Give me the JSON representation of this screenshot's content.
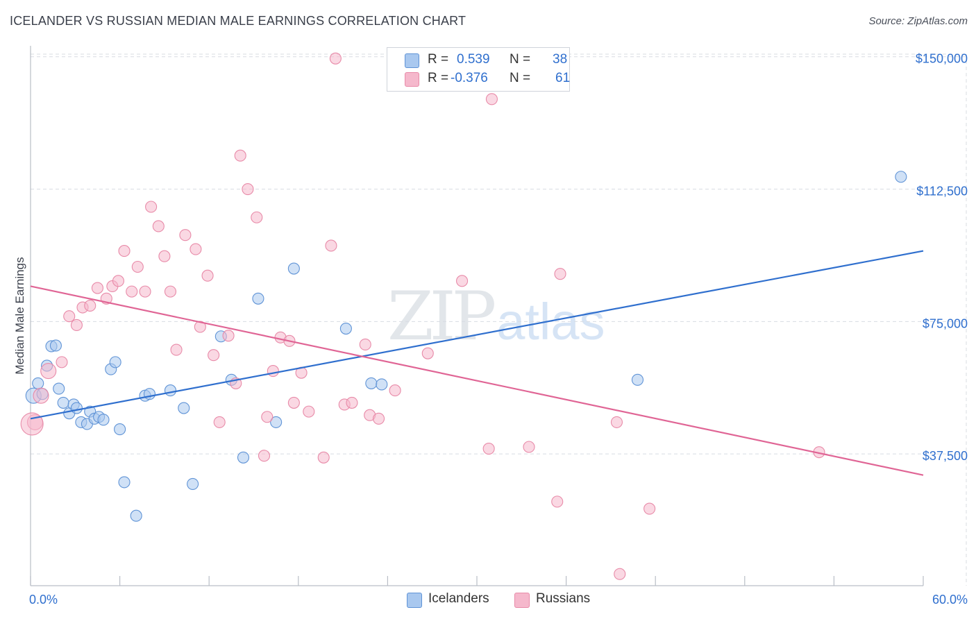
{
  "title": "ICELANDER VS RUSSIAN MEDIAN MALE EARNINGS CORRELATION CHART",
  "source": "Source: ZipAtlas.com",
  "watermark": {
    "zip": "ZIP",
    "atlas": "atlas"
  },
  "colors": {
    "icelanders_fill": "#a9c8ef",
    "icelanders_stroke": "#5f93d6",
    "icelanders_line": "#2f6fce",
    "russians_fill": "#f5b8cc",
    "russians_stroke": "#e88aa8",
    "russians_line": "#e06595",
    "axis_label": "#2f6fce",
    "grid": "#d8dce2"
  },
  "legend": {
    "r_label": "R =",
    "n_label": "N =",
    "icelanders": {
      "r": "0.539",
      "n": "38"
    },
    "russians": {
      "r": "-0.376",
      "n": "61"
    }
  },
  "chart_data": {
    "type": "scatter",
    "title": "ICELANDER VS RUSSIAN MEDIAN MALE EARNINGS CORRELATION CHART",
    "xlabel": "",
    "ylabel": "Median Male Earnings",
    "xlim": [
      0,
      60
    ],
    "ylim": [
      0,
      150000
    ],
    "x_tick_labels": [
      "0.0%",
      "60.0%"
    ],
    "y_ticks": [
      37500,
      75000,
      112500,
      150000
    ],
    "y_tick_labels": [
      "$37,500",
      "$75,000",
      "$112,500",
      "$150,000"
    ],
    "grid": true,
    "series": [
      {
        "name": "Icelanders",
        "points": [
          [
            0.2,
            54000
          ],
          [
            0.5,
            57500
          ],
          [
            0.8,
            54500
          ],
          [
            1.1,
            62500
          ],
          [
            1.4,
            68000
          ],
          [
            1.7,
            68200
          ],
          [
            1.9,
            56000
          ],
          [
            2.2,
            52000
          ],
          [
            2.6,
            49000
          ],
          [
            2.9,
            51500
          ],
          [
            3.1,
            50500
          ],
          [
            3.4,
            46500
          ],
          [
            3.8,
            46000
          ],
          [
            4.0,
            49500
          ],
          [
            4.3,
            47500
          ],
          [
            4.6,
            48000
          ],
          [
            4.9,
            47200
          ],
          [
            5.4,
            61500
          ],
          [
            5.7,
            63500
          ],
          [
            6.0,
            44500
          ],
          [
            6.3,
            29500
          ],
          [
            7.1,
            20000
          ],
          [
            7.7,
            54000
          ],
          [
            8.0,
            54500
          ],
          [
            9.4,
            55500
          ],
          [
            10.3,
            50500
          ],
          [
            10.9,
            29000
          ],
          [
            12.8,
            70800
          ],
          [
            13.5,
            58500
          ],
          [
            14.3,
            36500
          ],
          [
            15.3,
            81500
          ],
          [
            16.5,
            46500
          ],
          [
            17.7,
            90000
          ],
          [
            21.2,
            73000
          ],
          [
            22.9,
            57500
          ],
          [
            23.6,
            57200
          ],
          [
            40.8,
            58500
          ],
          [
            58.5,
            116000
          ]
        ]
      },
      {
        "name": "Russians",
        "points": [
          [
            0.3,
            46500
          ],
          [
            0.7,
            54000
          ],
          [
            1.2,
            61000
          ],
          [
            2.1,
            63500
          ],
          [
            2.6,
            76500
          ],
          [
            3.1,
            74000
          ],
          [
            3.5,
            79000
          ],
          [
            4.0,
            79500
          ],
          [
            4.5,
            84500
          ],
          [
            5.1,
            81500
          ],
          [
            5.5,
            85000
          ],
          [
            5.9,
            86500
          ],
          [
            6.3,
            95000
          ],
          [
            6.8,
            83500
          ],
          [
            7.2,
            90500
          ],
          [
            7.7,
            83500
          ],
          [
            8.1,
            107500
          ],
          [
            8.6,
            102000
          ],
          [
            9.0,
            93500
          ],
          [
            9.4,
            83500
          ],
          [
            9.8,
            67000
          ],
          [
            10.4,
            99500
          ],
          [
            11.1,
            95500
          ],
          [
            11.4,
            73500
          ],
          [
            11.9,
            88000
          ],
          [
            12.3,
            65500
          ],
          [
            12.7,
            46500
          ],
          [
            13.3,
            71000
          ],
          [
            13.8,
            57500
          ],
          [
            14.1,
            122000
          ],
          [
            14.6,
            112500
          ],
          [
            15.2,
            104500
          ],
          [
            15.7,
            37000
          ],
          [
            15.9,
            48000
          ],
          [
            16.3,
            61000
          ],
          [
            16.8,
            70500
          ],
          [
            17.4,
            69500
          ],
          [
            17.7,
            52000
          ],
          [
            18.2,
            60500
          ],
          [
            18.7,
            49500
          ],
          [
            19.7,
            36500
          ],
          [
            20.2,
            96500
          ],
          [
            20.5,
            149500
          ],
          [
            21.1,
            51500
          ],
          [
            21.6,
            52000
          ],
          [
            22.5,
            68500
          ],
          [
            22.8,
            48500
          ],
          [
            23.4,
            47500
          ],
          [
            24.5,
            55500
          ],
          [
            26.7,
            66000
          ],
          [
            29.0,
            86500
          ],
          [
            30.8,
            39000
          ],
          [
            31.0,
            138000
          ],
          [
            33.5,
            39500
          ],
          [
            35.4,
            24000
          ],
          [
            35.6,
            88500
          ],
          [
            39.4,
            46500
          ],
          [
            39.6,
            3500
          ],
          [
            41.6,
            22000
          ],
          [
            53.0,
            38000
          ],
          [
            0.1,
            46000
          ]
        ]
      }
    ],
    "trend_lines": [
      {
        "name": "Icelanders",
        "x": [
          0,
          60
        ],
        "y": [
          47500,
          95000
        ]
      },
      {
        "name": "Russians",
        "x": [
          0,
          60
        ],
        "y": [
          85000,
          31500
        ]
      }
    ],
    "legend_position": "bottom"
  },
  "bottom_legend": {
    "icelanders": "Icelanders",
    "russians": "Russians"
  }
}
